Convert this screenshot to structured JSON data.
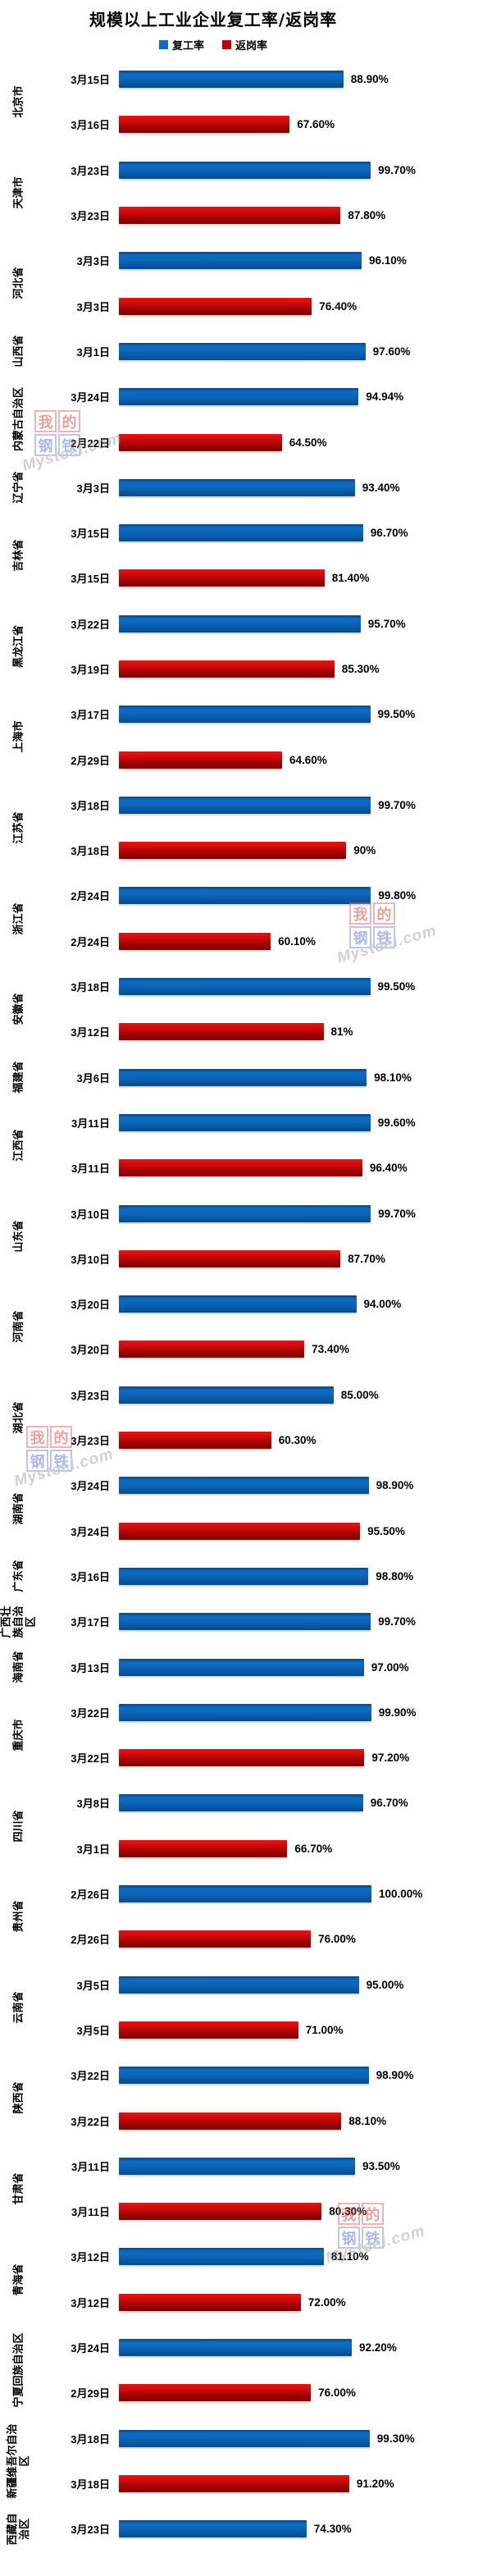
{
  "title": "规模以上工业企业复工率/返岗率",
  "legend": [
    {
      "label": "复工率",
      "color": "#0d6cc6"
    },
    {
      "label": "返岗率",
      "color": "#c00000"
    }
  ],
  "colors": {
    "blue_bar": "#0d6cc6",
    "red_bar": "#c00000",
    "text": "#000000",
    "background": "#ffffff"
  },
  "watermark": {
    "char1": "我",
    "char2": "的",
    "char3": "钢",
    "char4": "铁",
    "site": "Mysteel.com"
  },
  "chart_data": {
    "type": "bar",
    "orientation": "horizontal",
    "unit": "%",
    "xlim": [
      0,
      100
    ],
    "grid": false,
    "legend_position": "top",
    "series_names": [
      "复工率",
      "返岗率"
    ],
    "regions": [
      {
        "name": "北京市",
        "bars": [
          {
            "date": "3月15日",
            "series": "复工率",
            "value": 88.9,
            "label": "88.90%"
          },
          {
            "date": "3月16日",
            "series": "返岗率",
            "value": 67.6,
            "label": "67.60%"
          }
        ]
      },
      {
        "name": "天津市",
        "bars": [
          {
            "date": "3月23日",
            "series": "复工率",
            "value": 99.7,
            "label": "99.70%"
          },
          {
            "date": "3月23日",
            "series": "返岗率",
            "value": 87.8,
            "label": "87.80%"
          }
        ]
      },
      {
        "name": "河北省",
        "bars": [
          {
            "date": "3月3日",
            "series": "复工率",
            "value": 96.1,
            "label": "96.10%"
          },
          {
            "date": "3月3日",
            "series": "返岗率",
            "value": 76.4,
            "label": "76.40%"
          }
        ]
      },
      {
        "name": "山西省",
        "bars": [
          {
            "date": "3月1日",
            "series": "复工率",
            "value": 97.6,
            "label": "97.60%"
          }
        ]
      },
      {
        "name": "内蒙古自治区",
        "bars": [
          {
            "date": "3月24日",
            "series": "复工率",
            "value": 94.94,
            "label": "94.94%"
          },
          {
            "date": "2月22日",
            "series": "返岗率",
            "value": 64.5,
            "label": "64.50%"
          }
        ]
      },
      {
        "name": "辽宁省",
        "bars": [
          {
            "date": "3月3日",
            "series": "复工率",
            "value": 93.4,
            "label": "93.40%"
          }
        ]
      },
      {
        "name": "吉林省",
        "bars": [
          {
            "date": "3月15日",
            "series": "复工率",
            "value": 96.7,
            "label": "96.70%"
          },
          {
            "date": "3月15日",
            "series": "返岗率",
            "value": 81.4,
            "label": "81.40%"
          }
        ]
      },
      {
        "name": "黑龙江省",
        "bars": [
          {
            "date": "3月22日",
            "series": "复工率",
            "value": 95.7,
            "label": "95.70%"
          },
          {
            "date": "3月19日",
            "series": "返岗率",
            "value": 85.3,
            "label": "85.30%"
          }
        ]
      },
      {
        "name": "上海市",
        "bars": [
          {
            "date": "3月17日",
            "series": "复工率",
            "value": 99.5,
            "label": "99.50%"
          },
          {
            "date": "2月29日",
            "series": "返岗率",
            "value": 64.6,
            "label": "64.60%"
          }
        ]
      },
      {
        "name": "江苏省",
        "bars": [
          {
            "date": "3月18日",
            "series": "复工率",
            "value": 99.7,
            "label": "99.70%"
          },
          {
            "date": "3月18日",
            "series": "返岗率",
            "value": 90,
            "label": "90%"
          }
        ]
      },
      {
        "name": "浙江省",
        "bars": [
          {
            "date": "2月24日",
            "series": "复工率",
            "value": 99.8,
            "label": "99.80%"
          },
          {
            "date": "2月24日",
            "series": "返岗率",
            "value": 60.1,
            "label": "60.10%"
          }
        ]
      },
      {
        "name": "安徽省",
        "bars": [
          {
            "date": "3月18日",
            "series": "复工率",
            "value": 99.5,
            "label": "99.50%"
          },
          {
            "date": "3月12日",
            "series": "返岗率",
            "value": 81,
            "label": "81%"
          }
        ]
      },
      {
        "name": "福建省",
        "bars": [
          {
            "date": "3月6日",
            "series": "复工率",
            "value": 98.1,
            "label": "98.10%"
          }
        ]
      },
      {
        "name": "江西省",
        "bars": [
          {
            "date": "3月11日",
            "series": "复工率",
            "value": 99.6,
            "label": "99.60%"
          },
          {
            "date": "3月11日",
            "series": "返岗率",
            "value": 96.4,
            "label": "96.40%"
          }
        ]
      },
      {
        "name": "山东省",
        "bars": [
          {
            "date": "3月10日",
            "series": "复工率",
            "value": 99.7,
            "label": "99.70%"
          },
          {
            "date": "3月10日",
            "series": "返岗率",
            "value": 87.7,
            "label": "87.70%"
          }
        ]
      },
      {
        "name": "河南省",
        "bars": [
          {
            "date": "3月20日",
            "series": "复工率",
            "value": 94.0,
            "label": "94.00%"
          },
          {
            "date": "3月20日",
            "series": "返岗率",
            "value": 73.4,
            "label": "73.40%"
          }
        ]
      },
      {
        "name": "湖北省",
        "bars": [
          {
            "date": "3月23日",
            "series": "复工率",
            "value": 85.0,
            "label": "85.00%"
          },
          {
            "date": "3月23日",
            "series": "返岗率",
            "value": 60.3,
            "label": "60.30%"
          }
        ]
      },
      {
        "name": "湖南省",
        "bars": [
          {
            "date": "3月24日",
            "series": "复工率",
            "value": 98.9,
            "label": "98.90%"
          },
          {
            "date": "3月24日",
            "series": "返岗率",
            "value": 95.5,
            "label": "95.50%"
          }
        ]
      },
      {
        "name": "广东省",
        "bars": [
          {
            "date": "3月16日",
            "series": "复工率",
            "value": 98.8,
            "label": "98.80%"
          }
        ]
      },
      {
        "name": "广西壮族自治区",
        "bars": [
          {
            "date": "3月17日",
            "series": "复工率",
            "value": 99.7,
            "label": "99.70%"
          }
        ]
      },
      {
        "name": "海南省",
        "bars": [
          {
            "date": "3月13日",
            "series": "复工率",
            "value": 97.0,
            "label": "97.00%"
          }
        ]
      },
      {
        "name": "重庆市",
        "bars": [
          {
            "date": "3月22日",
            "series": "复工率",
            "value": 99.9,
            "label": "99.90%"
          },
          {
            "date": "3月22日",
            "series": "返岗率",
            "value": 97.2,
            "label": "97.20%"
          }
        ]
      },
      {
        "name": "四川省",
        "bars": [
          {
            "date": "3月8日",
            "series": "复工率",
            "value": 96.7,
            "label": "96.70%"
          },
          {
            "date": "3月1日",
            "series": "返岗率",
            "value": 66.7,
            "label": "66.70%"
          }
        ]
      },
      {
        "name": "贵州省",
        "bars": [
          {
            "date": "2月26日",
            "series": "复工率",
            "value": 100.0,
            "label": "100.00%"
          },
          {
            "date": "2月26日",
            "series": "返岗率",
            "value": 76.0,
            "label": "76.00%"
          }
        ]
      },
      {
        "name": "云南省",
        "bars": [
          {
            "date": "3月5日",
            "series": "复工率",
            "value": 95.0,
            "label": "95.00%"
          },
          {
            "date": "3月5日",
            "series": "返岗率",
            "value": 71.0,
            "label": "71.00%"
          }
        ]
      },
      {
        "name": "陕西省",
        "bars": [
          {
            "date": "3月22日",
            "series": "复工率",
            "value": 98.9,
            "label": "98.90%"
          },
          {
            "date": "3月22日",
            "series": "返岗率",
            "value": 88.1,
            "label": "88.10%"
          }
        ]
      },
      {
        "name": "甘肃省",
        "bars": [
          {
            "date": "3月11日",
            "series": "复工率",
            "value": 93.5,
            "label": "93.50%"
          },
          {
            "date": "3月11日",
            "series": "返岗率",
            "value": 80.3,
            "label": "80.30%"
          }
        ]
      },
      {
        "name": "青海省",
        "bars": [
          {
            "date": "3月12日",
            "series": "复工率",
            "value": 81.1,
            "label": "81.10%"
          },
          {
            "date": "3月12日",
            "series": "返岗率",
            "value": 72.0,
            "label": "72.00%"
          }
        ]
      },
      {
        "name": "宁夏回族自治区",
        "bars": [
          {
            "date": "3月24日",
            "series": "复工率",
            "value": 92.2,
            "label": "92.20%"
          },
          {
            "date": "2月29日",
            "series": "返岗率",
            "value": 76.0,
            "label": "76.00%"
          }
        ]
      },
      {
        "name": "新疆维吾尔自治区",
        "bars": [
          {
            "date": "3月18日",
            "series": "复工率",
            "value": 99.3,
            "label": "99.30%"
          },
          {
            "date": "3月18日",
            "series": "返岗率",
            "value": 91.2,
            "label": "91.20%"
          }
        ]
      },
      {
        "name": "西藏自治区",
        "bars": [
          {
            "date": "3月23日",
            "series": "复工率",
            "value": 74.3,
            "label": "74.30%"
          }
        ]
      }
    ]
  }
}
